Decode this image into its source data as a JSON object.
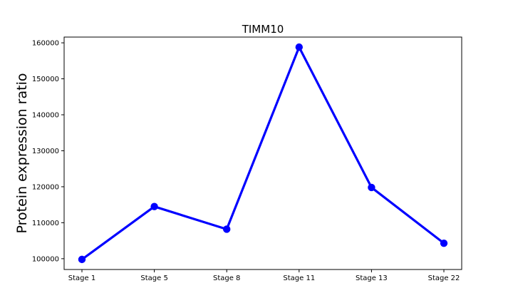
{
  "chart_data": {
    "type": "line",
    "title": "TIMM10",
    "xlabel": "",
    "ylabel": "Protein expression ratio",
    "categories": [
      "Stage 1",
      "Stage 5",
      "Stage 8",
      "Stage 11",
      "Stage 13",
      "Stage 22"
    ],
    "series": [
      {
        "values": [
          99800,
          114500,
          108200,
          158800,
          119800,
          104300
        ],
        "color": "#0000ff",
        "marker": "circle"
      }
    ],
    "ylim": [
      97000,
      161600
    ],
    "y_ticks": [
      100000,
      110000,
      120000,
      130000,
      140000,
      150000,
      160000
    ],
    "y_tick_labels": [
      "100000",
      "110000",
      "120000",
      "130000",
      "140000",
      "150000",
      "160000"
    ],
    "grid": false,
    "legend": "none"
  }
}
